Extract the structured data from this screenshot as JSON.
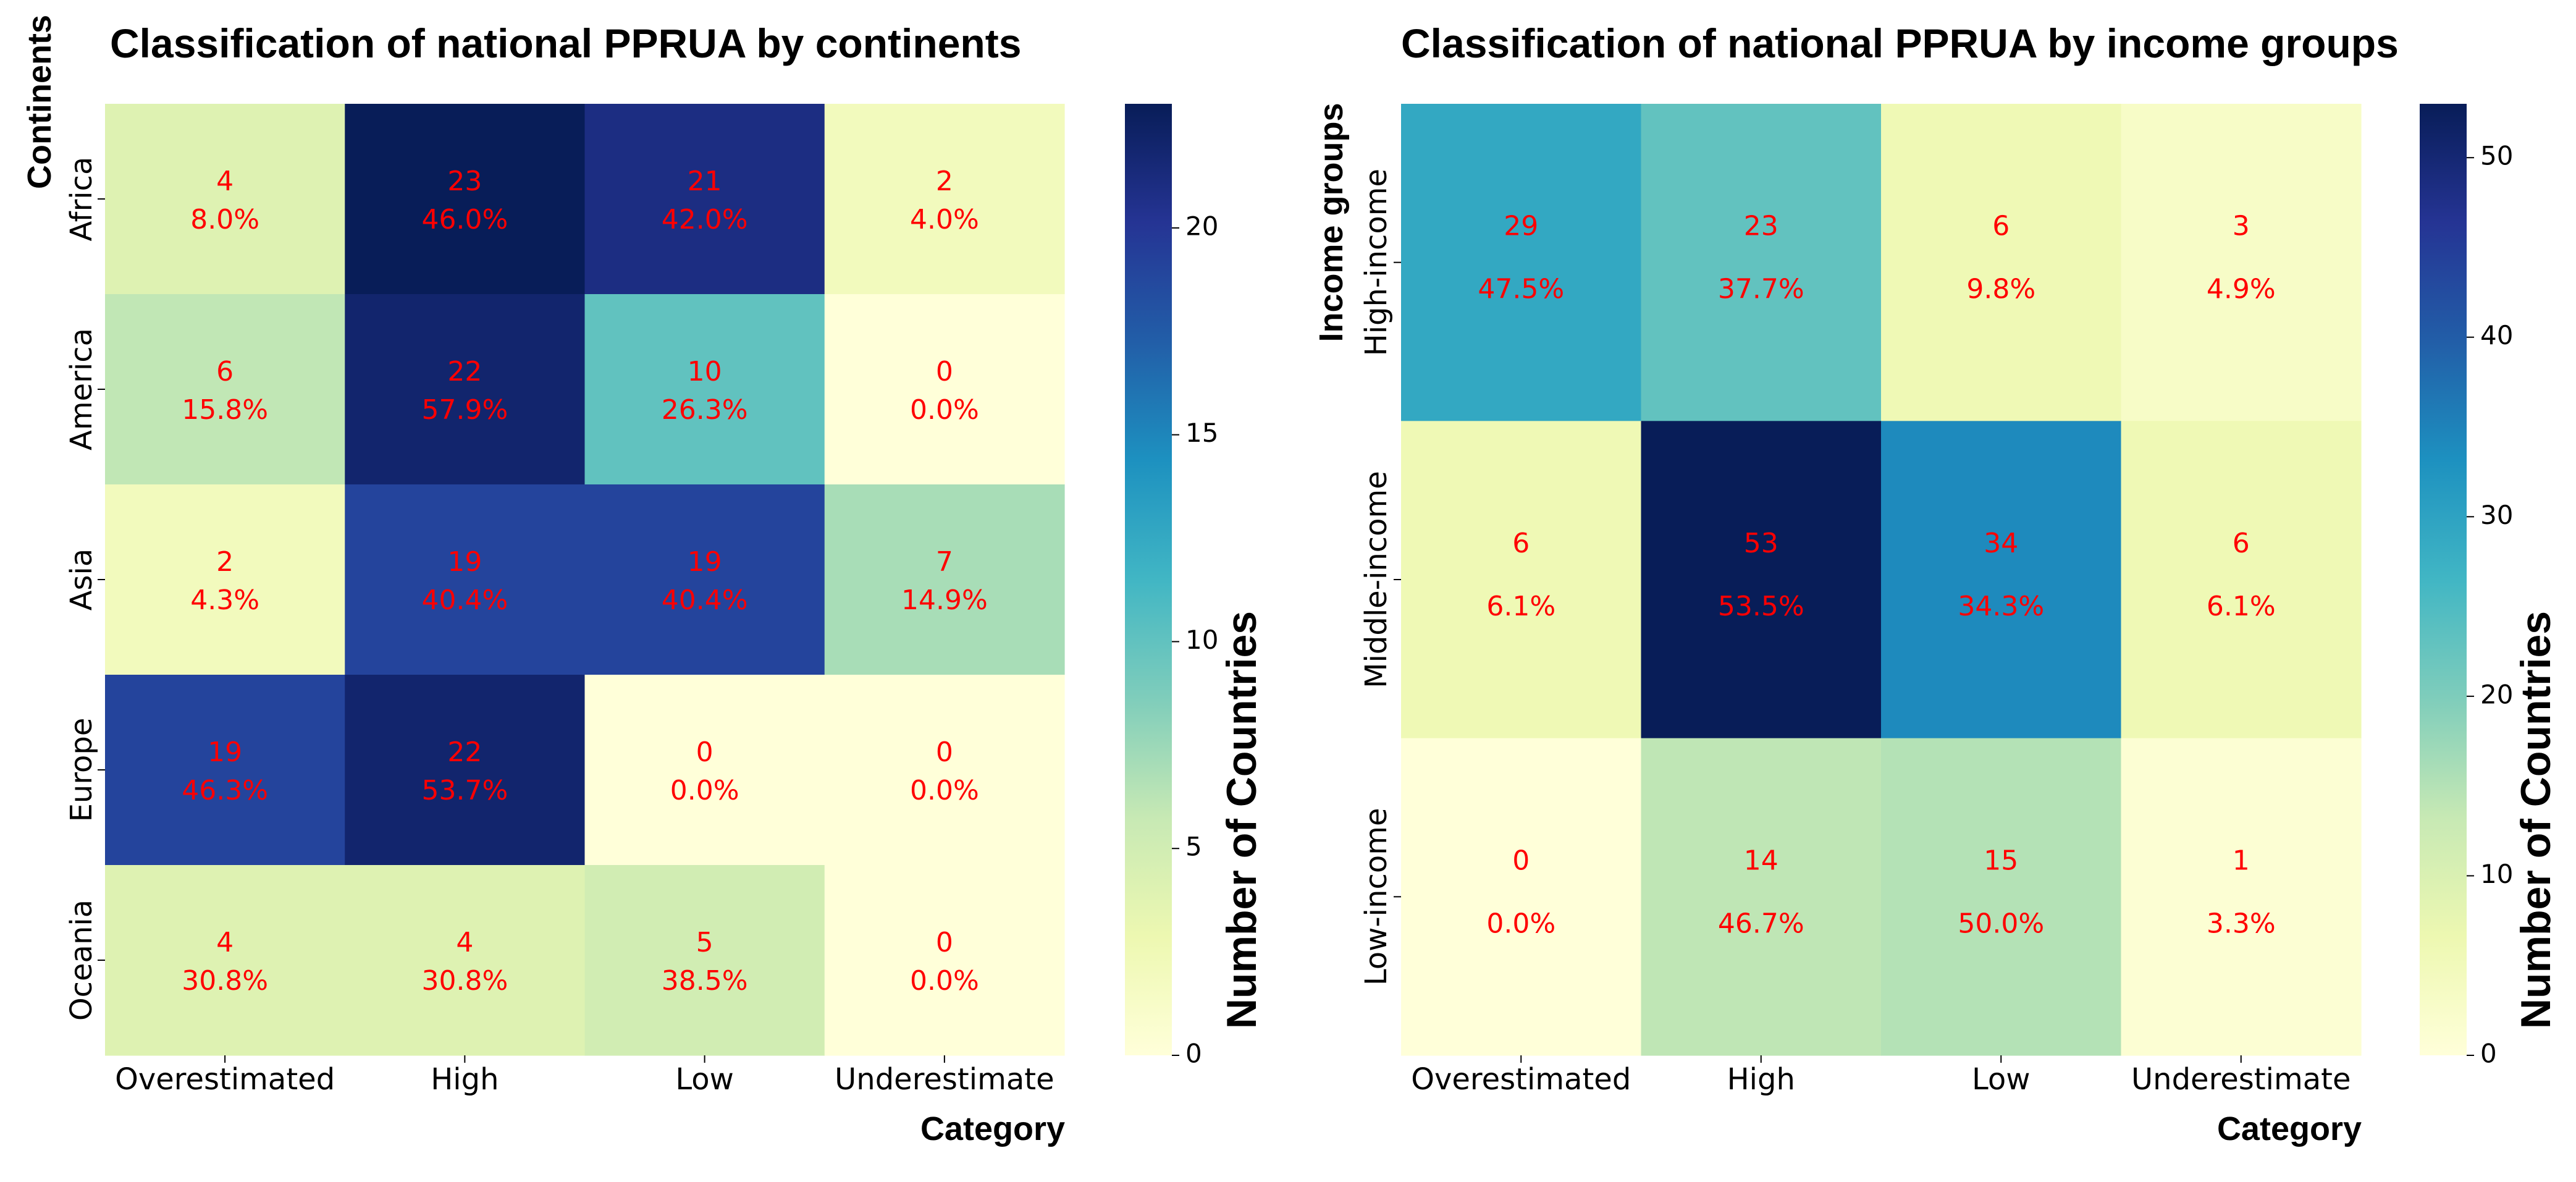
{
  "chart_data": [
    {
      "type": "heatmap",
      "title": "Classification of national PPRUA by continents",
      "xlabel": "Category",
      "ylabel": "Continents",
      "colorbar_label": "Number of Countries",
      "colorbar_range": [
        0,
        23
      ],
      "colorbar_ticks": [
        0,
        5,
        10,
        15,
        20
      ],
      "colormap": "YlGnBu",
      "annotation_color": "#ff0000",
      "x_categories": [
        "Overestimated",
        "High",
        "Low",
        "Underestimate"
      ],
      "y_categories": [
        "Africa",
        "America",
        "Asia",
        "Europe",
        "Oceania"
      ],
      "values": [
        [
          4,
          23,
          21,
          2
        ],
        [
          6,
          22,
          10,
          0
        ],
        [
          2,
          19,
          19,
          7
        ],
        [
          19,
          22,
          0,
          0
        ],
        [
          4,
          4,
          5,
          0
        ]
      ],
      "percentages": [
        [
          "8.0%",
          "46.0%",
          "42.0%",
          "4.0%"
        ],
        [
          "15.8%",
          "57.9%",
          "26.3%",
          "0.0%"
        ],
        [
          "4.3%",
          "40.4%",
          "40.4%",
          "14.9%"
        ],
        [
          "46.3%",
          "53.7%",
          "0.0%",
          "0.0%"
        ],
        [
          "30.8%",
          "30.8%",
          "38.5%",
          "0.0%"
        ]
      ]
    },
    {
      "type": "heatmap",
      "title": "Classification of national PPRUA by income groups",
      "xlabel": "Category",
      "ylabel": "Income groups",
      "colorbar_label": "Number of Countries",
      "colorbar_range": [
        0,
        53
      ],
      "colorbar_ticks": [
        0,
        10,
        20,
        30,
        40,
        50
      ],
      "colormap": "YlGnBu",
      "annotation_color": "#ff0000",
      "x_categories": [
        "Overestimated",
        "High",
        "Low",
        "Underestimate"
      ],
      "y_categories": [
        "High-income",
        "Middle-income",
        "Low-income"
      ],
      "values": [
        [
          29,
          23,
          6,
          3
        ],
        [
          6,
          53,
          34,
          6
        ],
        [
          0,
          14,
          15,
          1
        ]
      ],
      "percentages": [
        [
          "47.5%",
          "37.7%",
          "9.8%",
          "4.9%"
        ],
        [
          "6.1%",
          "53.5%",
          "34.3%",
          "6.1%"
        ],
        [
          "0.0%",
          "46.7%",
          "50.0%",
          "3.3%"
        ]
      ]
    }
  ]
}
